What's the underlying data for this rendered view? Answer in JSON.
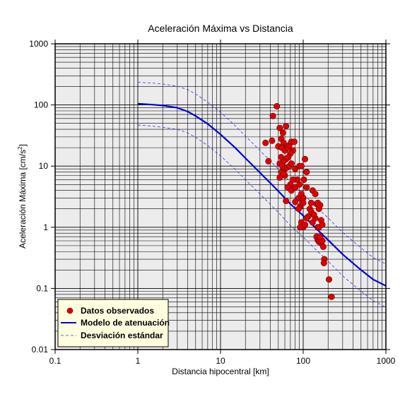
{
  "chart_data": {
    "type": "scatter",
    "title": "Aceleración Máxima vs Distancia",
    "xlabel": "Distancia hipocentral [km]",
    "ylabel_main": "Aceleración Máxima [cm/s",
    "ylabel_sup": "2",
    "ylabel_tail": "]",
    "x_scale": "log",
    "y_scale": "log",
    "xlim": [
      0.1,
      1000
    ],
    "ylim": [
      0.01,
      1000
    ],
    "x_ticks": [
      0.1,
      1,
      10,
      100,
      1000
    ],
    "x_tick_labels": [
      "0.1",
      "1",
      "10",
      "100",
      "1000"
    ],
    "y_ticks": [
      0.01,
      0.1,
      1,
      10,
      100,
      1000
    ],
    "y_tick_labels": [
      "0.01",
      "0.1",
      "1",
      "10",
      "100",
      "1000"
    ],
    "grid": true,
    "legend_position": "bottom-left",
    "colors": {
      "plot_background": "#ececec",
      "points": "#e00000",
      "model": "#0000dd",
      "deviation": "#3333ee",
      "legend_background": "#ffffe0"
    },
    "legend": [
      {
        "label": "Datos observados",
        "kind": "marker"
      },
      {
        "label": "Modelo de atenuación",
        "kind": "line"
      },
      {
        "label": "Desviación estándar",
        "kind": "dashed"
      }
    ],
    "series": [
      {
        "name": "Datos observados",
        "kind": "scatter",
        "points": [
          [
            48,
            95
          ],
          [
            43,
            66
          ],
          [
            35,
            24
          ],
          [
            38,
            12
          ],
          [
            42,
            26
          ],
          [
            52,
            42
          ],
          [
            57,
            35
          ],
          [
            62,
            45
          ],
          [
            54,
            28
          ],
          [
            58,
            24
          ],
          [
            50,
            21
          ],
          [
            55,
            20
          ],
          [
            60,
            18
          ],
          [
            65,
            20
          ],
          [
            68,
            22
          ],
          [
            72,
            25
          ],
          [
            78,
            25
          ],
          [
            75,
            18
          ],
          [
            70,
            16
          ],
          [
            66,
            14
          ],
          [
            62,
            13
          ],
          [
            58,
            12
          ],
          [
            54,
            14
          ],
          [
            52,
            11
          ],
          [
            56,
            10
          ],
          [
            60,
            9
          ],
          [
            64,
            9.5
          ],
          [
            68,
            10
          ],
          [
            72,
            11
          ],
          [
            80,
            9
          ],
          [
            85,
            6
          ],
          [
            90,
            10
          ],
          [
            95,
            10
          ],
          [
            105,
            13
          ],
          [
            110,
            8
          ],
          [
            102,
            6
          ],
          [
            90,
            5
          ],
          [
            75,
            6
          ],
          [
            70,
            5
          ],
          [
            65,
            4.5
          ],
          [
            60,
            7
          ],
          [
            55,
            8
          ],
          [
            52,
            6.5
          ],
          [
            58,
            7.5
          ],
          [
            72,
            4
          ],
          [
            80,
            4.5
          ],
          [
            88,
            3
          ],
          [
            95,
            3.5
          ],
          [
            100,
            3
          ],
          [
            98,
            2.7
          ],
          [
            92,
            2.2
          ],
          [
            88,
            2.0
          ],
          [
            110,
            4.5
          ],
          [
            125,
            2.5
          ],
          [
            130,
            4
          ],
          [
            140,
            3.5
          ],
          [
            145,
            2.4
          ],
          [
            150,
            2.5
          ],
          [
            155,
            2.0
          ],
          [
            160,
            2.3
          ],
          [
            120,
            2.0
          ],
          [
            115,
            1.5
          ],
          [
            110,
            1.4
          ],
          [
            100,
            1.0
          ],
          [
            95,
            1.2
          ],
          [
            92,
            1.0
          ],
          [
            105,
            1.1
          ],
          [
            130,
            1.2
          ],
          [
            140,
            1.4
          ],
          [
            150,
            1.0
          ],
          [
            155,
            1.0
          ],
          [
            165,
            1.3
          ],
          [
            170,
            1.1
          ],
          [
            145,
            0.7
          ],
          [
            150,
            0.62
          ],
          [
            155,
            0.58
          ],
          [
            160,
            0.65
          ],
          [
            165,
            0.55
          ],
          [
            170,
            0.6
          ],
          [
            175,
            0.48
          ],
          [
            180,
            0.3
          ],
          [
            178,
            0.26
          ],
          [
            205,
            0.14
          ],
          [
            220,
            0.073
          ],
          [
            62,
            2.7
          ],
          [
            80,
            2.6
          ],
          [
            100,
            2.5
          ],
          [
            125,
            1.8
          ],
          [
            135,
            1.6
          ],
          [
            160,
            0.7
          ]
        ]
      },
      {
        "name": "Modelo de atenuación",
        "kind": "line",
        "points": [
          [
            1,
            105
          ],
          [
            1.5,
            101
          ],
          [
            2,
            98
          ],
          [
            3,
            90
          ],
          [
            4,
            78
          ],
          [
            5,
            66
          ],
          [
            7,
            49
          ],
          [
            10,
            33
          ],
          [
            15,
            20
          ],
          [
            20,
            13.5
          ],
          [
            30,
            7.8
          ],
          [
            50,
            3.9
          ],
          [
            70,
            2.4
          ],
          [
            100,
            1.55
          ],
          [
            150,
            0.9
          ],
          [
            200,
            0.62
          ],
          [
            300,
            0.36
          ],
          [
            500,
            0.2
          ],
          [
            700,
            0.14
          ],
          [
            1000,
            0.11
          ]
        ]
      },
      {
        "name": "Desviación estándar",
        "kind": "dashed",
        "points": [
          [
            1,
            235
          ],
          [
            1.5,
            228
          ],
          [
            2,
            220
          ],
          [
            3,
            203
          ],
          [
            4,
            178
          ],
          [
            5,
            151
          ],
          [
            7,
            111
          ],
          [
            10,
            76
          ],
          [
            15,
            46
          ],
          [
            20,
            31
          ],
          [
            30,
            18
          ],
          [
            50,
            9
          ],
          [
            70,
            5.5
          ],
          [
            100,
            3.5
          ],
          [
            150,
            2.05
          ],
          [
            200,
            1.42
          ],
          [
            300,
            0.82
          ],
          [
            500,
            0.46
          ],
          [
            700,
            0.32
          ],
          [
            1000,
            0.25
          ]
        ]
      },
      {
        "name": "Desviación estándar",
        "kind": "dashed",
        "points": [
          [
            1,
            47
          ],
          [
            1.5,
            45
          ],
          [
            2,
            43
          ],
          [
            3,
            40
          ],
          [
            4,
            35
          ],
          [
            5,
            29.5
          ],
          [
            7,
            21.7
          ],
          [
            10,
            14.7
          ],
          [
            15,
            8.9
          ],
          [
            20,
            6.0
          ],
          [
            30,
            3.5
          ],
          [
            50,
            1.75
          ],
          [
            70,
            1.07
          ],
          [
            100,
            0.69
          ],
          [
            150,
            0.4
          ],
          [
            200,
            0.28
          ],
          [
            300,
            0.16
          ],
          [
            500,
            0.09
          ],
          [
            700,
            0.063
          ],
          [
            1000,
            0.049
          ]
        ]
      }
    ]
  }
}
